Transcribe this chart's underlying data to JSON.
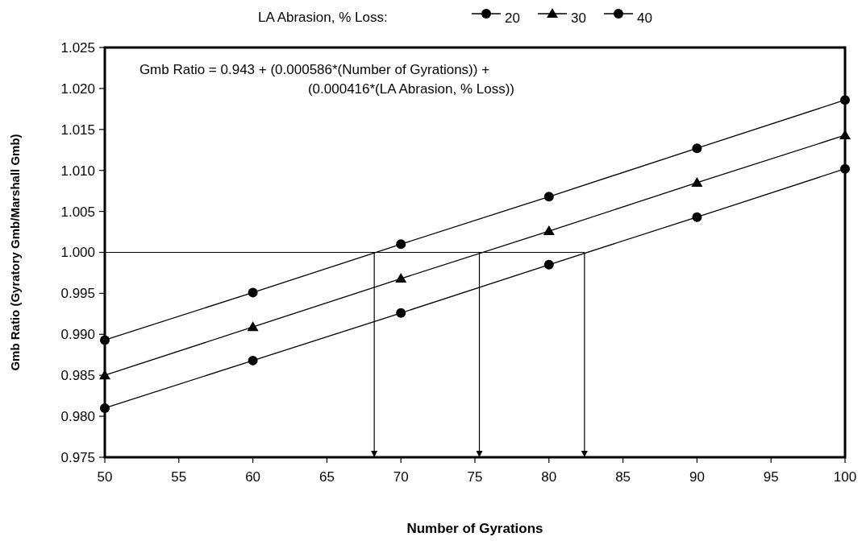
{
  "chart_data": {
    "type": "line",
    "xlabel": "Number of Gyrations",
    "ylabel": "Gmb Ratio (Gyratory Gmb/Marshall Gmb)",
    "legend_title": "LA Abrasion, % Loss:",
    "legend": "top",
    "x": [
      50,
      60,
      70,
      80,
      90,
      100
    ],
    "series": [
      {
        "name": "20",
        "color": "#000000",
        "marker": "circle",
        "values": [
          0.981,
          0.9868,
          0.9926,
          0.9985,
          1.0043,
          1.0102
        ]
      },
      {
        "name": "30",
        "color": "#000000",
        "marker": "triangle",
        "values": [
          0.985,
          0.9909,
          0.9968,
          1.0026,
          1.0085,
          1.0143
        ]
      },
      {
        "name": "40",
        "color": "#000000",
        "marker": "circle",
        "values": [
          0.9893,
          0.9951,
          1.001,
          1.0068,
          1.0127,
          1.0186
        ]
      }
    ],
    "line_style": "solid",
    "xlim": [
      50,
      100
    ],
    "xticks": [
      50,
      55,
      60,
      65,
      70,
      75,
      80,
      85,
      90,
      95,
      100
    ],
    "ylim": [
      0.975,
      1.025
    ],
    "yticks": [
      {
        "value": 0.975,
        "label": "0.975"
      },
      {
        "value": 0.98,
        "label": "0.980"
      },
      {
        "value": 0.985,
        "label": "0.985"
      },
      {
        "value": 0.99,
        "label": "0.990"
      },
      {
        "value": 0.995,
        "label": "0.995"
      },
      {
        "value": 1.0,
        "label": "1.000"
      },
      {
        "value": 1.005,
        "label": "1.005"
      },
      {
        "value": 1.01,
        "label": "1.010"
      },
      {
        "value": 1.015,
        "label": "1.015"
      },
      {
        "value": 1.02,
        "label": "1.020"
      },
      {
        "value": 1.025,
        "label": "1.025"
      }
    ],
    "ref_lines": [
      {
        "axis": "y",
        "value": 1.0,
        "color": "#000000"
      },
      {
        "axis": "x",
        "value": 68.2,
        "color": "#000000"
      },
      {
        "axis": "x",
        "value": 75.3,
        "color": "#000000"
      },
      {
        "axis": "x",
        "value": 82.4,
        "color": "#000000"
      }
    ],
    "annotations": [
      "Gmb Ratio = 0.943 + (0.000586*(Number of Gyrations)) +\n(0.000416*(LA Abrasion, % Loss))"
    ]
  }
}
